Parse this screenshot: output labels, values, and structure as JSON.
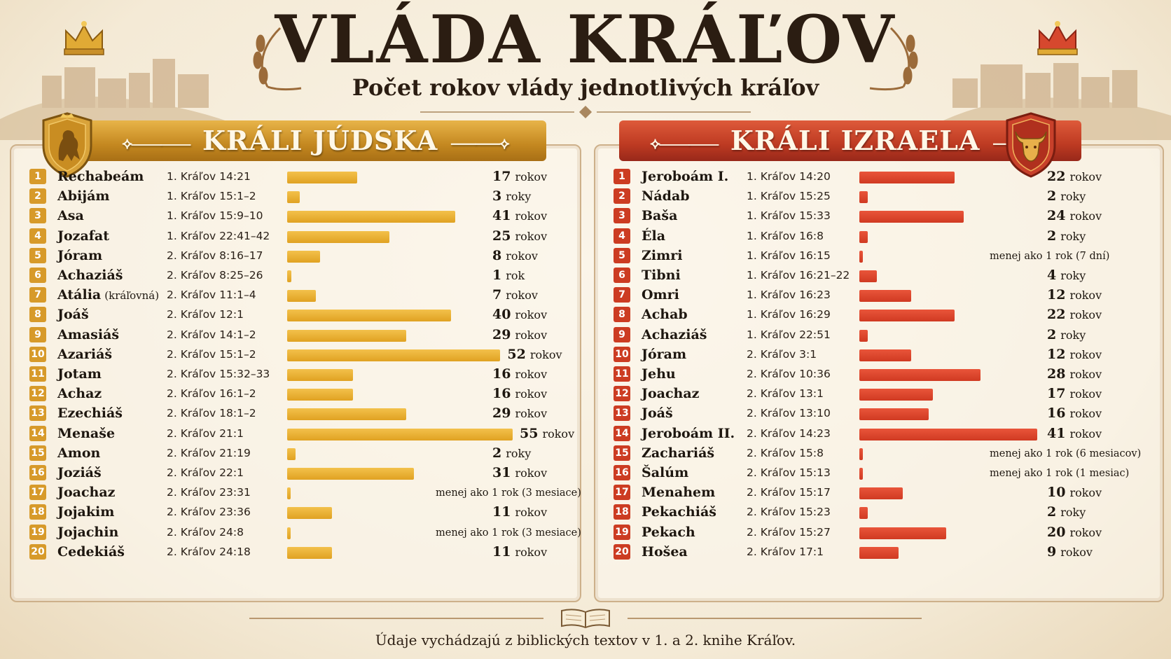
{
  "title": "VLÁDA KRÁĽOV",
  "subtitle": "Počet rokov vlády jednotlivých kráľov",
  "footer": "Údaje vychádzajú z biblických textov v 1. a 2. knihe Kráľov.",
  "colors": {
    "judah": "#e0a222",
    "israel": "#d03a22",
    "background": "#f6eddc"
  },
  "icons": {
    "left_crown": "gold-crown-icon",
    "right_crown": "red-crown-icon",
    "left_shield": "lion-shield-icon",
    "right_shield": "bull-shield-icon",
    "footer": "open-book-icon"
  },
  "chart_data": [
    {
      "type": "bar",
      "orientation": "horizontal",
      "title": "KRÁLI JÚDSKA",
      "xlim": [
        0,
        55
      ],
      "rows": [
        {
          "num": "1",
          "name": "Rechabeám",
          "note": "",
          "ref": "1. Kráľov 14:21",
          "value": 17,
          "label_n": "17",
          "label_u": "rokov"
        },
        {
          "num": "2",
          "name": "Abijám",
          "note": "",
          "ref": "1. Kráľov 15:1–2",
          "value": 3,
          "label_n": "3",
          "label_u": "roky"
        },
        {
          "num": "3",
          "name": "Asa",
          "note": "",
          "ref": "1. Kráľov 15:9–10",
          "value": 41,
          "label_n": "41",
          "label_u": "rokov"
        },
        {
          "num": "4",
          "name": "Jozafat",
          "note": "",
          "ref": "1. Kráľov 22:41–42",
          "value": 25,
          "label_n": "25",
          "label_u": "rokov"
        },
        {
          "num": "5",
          "name": "Jóram",
          "note": "",
          "ref": "2. Kráľov 8:16–17",
          "value": 8,
          "label_n": "8",
          "label_u": "rokov"
        },
        {
          "num": "6",
          "name": "Achaziáš",
          "note": "",
          "ref": "2. Kráľov 8:25–26",
          "value": 1,
          "label_n": "1",
          "label_u": "rok"
        },
        {
          "num": "7",
          "name": "Atália",
          "note": "(kráľovná)",
          "ref": "2. Kráľov 11:1–4",
          "value": 7,
          "label_n": "7",
          "label_u": "rokov"
        },
        {
          "num": "8",
          "name": "Joáš",
          "note": "",
          "ref": "2. Kráľov 12:1",
          "value": 40,
          "label_n": "40",
          "label_u": "rokov"
        },
        {
          "num": "9",
          "name": "Amasiáš",
          "note": "",
          "ref": "2. Kráľov 14:1–2",
          "value": 29,
          "label_n": "29",
          "label_u": "rokov"
        },
        {
          "num": "10",
          "name": "Azariáš",
          "note": "",
          "ref": "2. Kráľov 15:1–2",
          "value": 52,
          "label_n": "52",
          "label_u": "rokov"
        },
        {
          "num": "11",
          "name": "Jotam",
          "note": "",
          "ref": "2. Kráľov 15:32–33",
          "value": 16,
          "label_n": "16",
          "label_u": "rokov"
        },
        {
          "num": "12",
          "name": "Achaz",
          "note": "",
          "ref": "2. Kráľov 16:1–2",
          "value": 16,
          "label_n": "16",
          "label_u": "rokov"
        },
        {
          "num": "13",
          "name": "Ezechiáš",
          "note": "",
          "ref": "2. Kráľov 18:1–2",
          "value": 29,
          "label_n": "29",
          "label_u": "rokov"
        },
        {
          "num": "14",
          "name": "Menaše",
          "note": "",
          "ref": "2. Kráľov 21:1",
          "value": 55,
          "label_n": "55",
          "label_u": "rokov"
        },
        {
          "num": "15",
          "name": "Amon",
          "note": "",
          "ref": "2. Kráľov 21:19",
          "value": 2,
          "label_n": "2",
          "label_u": "roky"
        },
        {
          "num": "16",
          "name": "Joziáš",
          "note": "",
          "ref": "2. Kráľov 22:1",
          "value": 31,
          "label_n": "31",
          "label_u": "rokov"
        },
        {
          "num": "17",
          "name": "Joachaz",
          "note": "",
          "ref": "2. Kráľov 23:31",
          "value": 0.25,
          "label_n": "",
          "label_u": "menej ako 1 rok (3 mesiace)"
        },
        {
          "num": "18",
          "name": "Jojakim",
          "note": "",
          "ref": "2. Kráľov 23:36",
          "value": 11,
          "label_n": "11",
          "label_u": "rokov"
        },
        {
          "num": "19",
          "name": "Jojachin",
          "note": "",
          "ref": "2. Kráľov 24:8",
          "value": 0.25,
          "label_n": "",
          "label_u": "menej ako 1 rok (3 mesiace)"
        },
        {
          "num": "20",
          "name": "Cedekiáš",
          "note": "",
          "ref": "2. Kráľov 24:18",
          "value": 11,
          "label_n": "11",
          "label_u": "rokov"
        }
      ]
    },
    {
      "type": "bar",
      "orientation": "horizontal",
      "title": "KRÁLI IZRAELA",
      "xlim": [
        0,
        41
      ],
      "rows": [
        {
          "num": "1",
          "name": "Jeroboám I.",
          "note": "",
          "ref": "1. Kráľov 14:20",
          "value": 22,
          "label_n": "22",
          "label_u": "rokov"
        },
        {
          "num": "2",
          "name": "Nádab",
          "note": "",
          "ref": "1. Kráľov 15:25",
          "value": 2,
          "label_n": "2",
          "label_u": "roky"
        },
        {
          "num": "3",
          "name": "Baša",
          "note": "",
          "ref": "1. Kráľov 15:33",
          "value": 24,
          "label_n": "24",
          "label_u": "rokov"
        },
        {
          "num": "4",
          "name": "Éla",
          "note": "",
          "ref": "1. Kráľov 16:8",
          "value": 2,
          "label_n": "2",
          "label_u": "roky"
        },
        {
          "num": "5",
          "name": "Zimri",
          "note": "",
          "ref": "1. Kráľov 16:15",
          "value": 0.02,
          "label_n": "",
          "label_u": "menej ako 1 rok (7 dní)"
        },
        {
          "num": "6",
          "name": "Tibni",
          "note": "",
          "ref": "1. Kráľov 16:21–22",
          "value": 4,
          "label_n": "4",
          "label_u": "roky"
        },
        {
          "num": "7",
          "name": "Omri",
          "note": "",
          "ref": "1. Kráľov 16:23",
          "value": 12,
          "label_n": "12",
          "label_u": "rokov"
        },
        {
          "num": "8",
          "name": "Achab",
          "note": "",
          "ref": "1. Kráľov 16:29",
          "value": 22,
          "label_n": "22",
          "label_u": "rokov"
        },
        {
          "num": "9",
          "name": "Achaziáš",
          "note": "",
          "ref": "1. Kráľov 22:51",
          "value": 2,
          "label_n": "2",
          "label_u": "roky"
        },
        {
          "num": "10",
          "name": "Jóram",
          "note": "",
          "ref": "2. Kráľov  3:1",
          "value": 12,
          "label_n": "12",
          "label_u": "rokov"
        },
        {
          "num": "11",
          "name": "Jehu",
          "note": "",
          "ref": "2. Kráľov 10:36",
          "value": 28,
          "label_n": "28",
          "label_u": "rokov"
        },
        {
          "num": "12",
          "name": "Joachaz",
          "note": "",
          "ref": "2. Kráľov 13:1",
          "value": 17,
          "label_n": "17",
          "label_u": "rokov"
        },
        {
          "num": "13",
          "name": "Joáš",
          "note": "",
          "ref": "2. Kráľov 13:10",
          "value": 16,
          "label_n": "16",
          "label_u": "rokov"
        },
        {
          "num": "14",
          "name": "Jeroboám II.",
          "note": "",
          "ref": "2. Kráľov 14:23",
          "value": 41,
          "label_n": "41",
          "label_u": "rokov"
        },
        {
          "num": "15",
          "name": "Zachariáš",
          "note": "",
          "ref": "2. Kráľov 15:8",
          "value": 0.5,
          "label_n": "",
          "label_u": "menej ako 1 rok (6 mesiacov)"
        },
        {
          "num": "16",
          "name": "Šalúm",
          "note": "",
          "ref": "2. Kráľov 15:13",
          "value": 0.08,
          "label_n": "",
          "label_u": "menej ako 1 rok (1 mesiac)"
        },
        {
          "num": "17",
          "name": "Menahem",
          "note": "",
          "ref": "2. Kráľov 15:17",
          "value": 10,
          "label_n": "10",
          "label_u": "rokov"
        },
        {
          "num": "18",
          "name": "Pekachiáš",
          "note": "",
          "ref": "2. Kráľov 15:23",
          "value": 2,
          "label_n": "2",
          "label_u": "roky"
        },
        {
          "num": "19",
          "name": "Pekach",
          "note": "",
          "ref": "2. Kráľov 15:27",
          "value": 20,
          "label_n": "20",
          "label_u": "rokov"
        },
        {
          "num": "20",
          "name": "Hošea",
          "note": "",
          "ref": "2. Kráľov  17:1",
          "value": 9,
          "label_n": "9",
          "label_u": "rokov"
        }
      ]
    }
  ]
}
